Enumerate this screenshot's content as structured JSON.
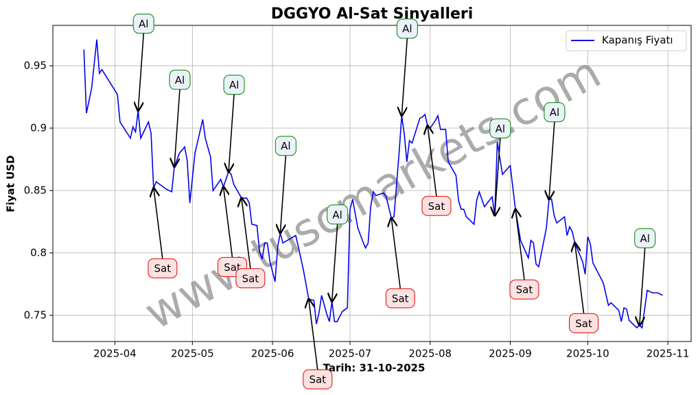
{
  "chart_data": {
    "type": "line",
    "title": "DGGYO Al-Sat Sinyalleri",
    "x_label": "Tarih: 31-10-2025",
    "y_label": "Fiyat USD",
    "watermark": "www.tuscmarkets.com",
    "grid": true,
    "legend_position": "upper right",
    "xlim": [
      "2025-03-08",
      "2025-11-10"
    ],
    "ylim": [
      0.729,
      0.9824
    ],
    "xticks": [
      {
        "value": "2025-04-01",
        "label": "2025-04"
      },
      {
        "value": "2025-05-01",
        "label": "2025-05"
      },
      {
        "value": "2025-06-01",
        "label": "2025-06"
      },
      {
        "value": "2025-07-01",
        "label": "2025-07"
      },
      {
        "value": "2025-08-01",
        "label": "2025-08"
      },
      {
        "value": "2025-09-01",
        "label": "2025-09"
      },
      {
        "value": "2025-10-01",
        "label": "2025-10"
      },
      {
        "value": "2025-11-01",
        "label": "2025-11"
      }
    ],
    "yticks": [
      0.75,
      0.8,
      0.85,
      0.9,
      0.95
    ],
    "x": [
      "2025-03-20",
      "2025-03-21",
      "2025-03-23",
      "2025-03-25",
      "2025-03-26",
      "2025-03-27",
      "2025-04-02",
      "2025-04-03",
      "2025-04-07",
      "2025-04-08",
      "2025-04-09",
      "2025-04-10",
      "2025-04-11",
      "2025-04-14",
      "2025-04-15",
      "2025-04-16",
      "2025-04-17",
      "2025-04-21",
      "2025-04-23",
      "2025-04-24",
      "2025-04-26",
      "2025-04-28",
      "2025-04-29",
      "2025-04-30",
      "2025-05-02",
      "2025-05-05",
      "2025-05-06",
      "2025-05-08",
      "2025-05-09",
      "2025-05-12",
      "2025-05-13",
      "2025-05-15",
      "2025-05-16",
      "2025-05-17",
      "2025-05-20",
      "2025-05-22",
      "2025-05-23",
      "2025-05-24",
      "2025-05-26",
      "2025-05-27",
      "2025-05-28",
      "2025-05-29",
      "2025-05-30",
      "2025-05-31",
      "2025-06-02",
      "2025-06-03",
      "2025-06-04",
      "2025-06-05",
      "2025-06-10",
      "2025-06-11",
      "2025-06-13",
      "2025-06-15",
      "2025-06-17",
      "2025-06-18",
      "2025-06-19",
      "2025-06-20",
      "2025-06-22",
      "2025-06-23",
      "2025-06-24",
      "2025-06-25",
      "2025-06-26",
      "2025-06-28",
      "2025-06-30",
      "2025-07-01",
      "2025-07-02",
      "2025-07-04",
      "2025-07-06",
      "2025-07-07",
      "2025-07-08",
      "2025-07-09",
      "2025-07-10",
      "2025-07-11",
      "2025-07-14",
      "2025-07-15",
      "2025-07-17",
      "2025-07-18",
      "2025-07-20",
      "2025-07-21",
      "2025-07-22",
      "2025-07-23",
      "2025-07-24",
      "2025-07-25",
      "2025-07-28",
      "2025-07-29",
      "2025-07-30",
      "2025-07-31",
      "2025-08-01",
      "2025-08-03",
      "2025-08-04",
      "2025-08-05",
      "2025-08-07",
      "2025-08-08",
      "2025-08-11",
      "2025-08-12",
      "2025-08-13",
      "2025-08-14",
      "2025-08-15",
      "2025-08-18",
      "2025-08-19",
      "2025-08-20",
      "2025-08-22",
      "2025-08-25",
      "2025-08-26",
      "2025-08-27",
      "2025-08-29",
      "2025-09-01",
      "2025-09-03",
      "2025-09-05",
      "2025-09-08",
      "2025-09-09",
      "2025-09-10",
      "2025-09-11",
      "2025-09-12",
      "2025-09-15",
      "2025-09-16",
      "2025-09-17",
      "2025-09-18",
      "2025-09-19",
      "2025-09-22",
      "2025-09-23",
      "2025-09-24",
      "2025-09-25",
      "2025-09-26",
      "2025-09-29",
      "2025-09-30",
      "2025-10-01",
      "2025-10-02",
      "2025-10-03",
      "2025-10-07",
      "2025-10-09",
      "2025-10-10",
      "2025-10-13",
      "2025-10-14",
      "2025-10-15",
      "2025-10-16",
      "2025-10-17",
      "2025-10-20",
      "2025-10-21",
      "2025-10-22",
      "2025-10-24",
      "2025-10-26",
      "2025-10-28",
      "2025-10-30"
    ],
    "series": [
      {
        "name": "Kapanış Fiyatı",
        "color": "#0000ee",
        "values": [
          0.963,
          0.912,
          0.932,
          0.971,
          0.944,
          0.947,
          0.927,
          0.905,
          0.892,
          0.901,
          0.897,
          0.914,
          0.892,
          0.905,
          0.896,
          0.852,
          0.857,
          0.851,
          0.849,
          0.869,
          0.88,
          0.885,
          0.874,
          0.84,
          0.88,
          0.907,
          0.892,
          0.877,
          0.85,
          0.859,
          0.853,
          0.865,
          0.863,
          0.855,
          0.844,
          0.844,
          0.84,
          0.823,
          0.822,
          0.801,
          0.795,
          0.808,
          0.808,
          0.793,
          0.777,
          0.805,
          0.816,
          0.808,
          0.814,
          0.805,
          0.786,
          0.763,
          0.762,
          0.743,
          0.752,
          0.766,
          0.751,
          0.745,
          0.761,
          0.745,
          0.745,
          0.753,
          0.756,
          0.835,
          0.843,
          0.82,
          0.809,
          0.804,
          0.808,
          0.837,
          0.849,
          0.846,
          0.848,
          0.845,
          0.828,
          0.829,
          0.88,
          0.91,
          0.895,
          0.873,
          0.89,
          0.888,
          0.908,
          0.909,
          0.911,
          0.902,
          0.9,
          0.906,
          0.91,
          0.899,
          0.899,
          0.873,
          0.862,
          0.842,
          0.835,
          0.835,
          0.829,
          0.823,
          0.842,
          0.849,
          0.837,
          0.845,
          0.83,
          0.889,
          0.863,
          0.87,
          0.835,
          0.81,
          0.796,
          0.81,
          0.808,
          0.791,
          0.789,
          0.82,
          0.843,
          0.843,
          0.83,
          0.824,
          0.829,
          0.814,
          0.821,
          0.817,
          0.808,
          0.793,
          0.783,
          0.813,
          0.807,
          0.792,
          0.776,
          0.758,
          0.76,
          0.754,
          0.745,
          0.756,
          0.755,
          0.746,
          0.74,
          0.742,
          0.74,
          0.77,
          0.768,
          0.768,
          0.766
        ]
      }
    ],
    "annotations": [
      {
        "text": "Al",
        "x": "2025-04-10",
        "y": 0.914
      },
      {
        "text": "Sat",
        "x": "2025-04-16",
        "y": 0.852
      },
      {
        "text": "Al",
        "x": "2025-04-24",
        "y": 0.869
      },
      {
        "text": "Sat",
        "x": "2025-05-13",
        "y": 0.853
      },
      {
        "text": "Al",
        "x": "2025-05-15",
        "y": 0.865
      },
      {
        "text": "Sat",
        "x": "2025-05-20",
        "y": 0.844
      },
      {
        "text": "Al",
        "x": "2025-06-04",
        "y": 0.816
      },
      {
        "text": "Sat",
        "x": "2025-06-15",
        "y": 0.763
      },
      {
        "text": "Al",
        "x": "2025-06-24",
        "y": 0.761
      },
      {
        "text": "Sat",
        "x": "2025-07-17",
        "y": 0.828
      },
      {
        "text": "Al",
        "x": "2025-07-21",
        "y": 0.91
      },
      {
        "text": "Sat",
        "x": "2025-07-31",
        "y": 0.902
      },
      {
        "text": "Al",
        "x": "2025-08-26",
        "y": 0.83
      },
      {
        "text": "Sat",
        "x": "2025-09-03",
        "y": 0.835
      },
      {
        "text": "Al",
        "x": "2025-09-16",
        "y": 0.843
      },
      {
        "text": "Sat",
        "x": "2025-09-26",
        "y": 0.808
      },
      {
        "text": "Al",
        "x": "2025-10-21",
        "y": 0.742
      }
    ]
  }
}
